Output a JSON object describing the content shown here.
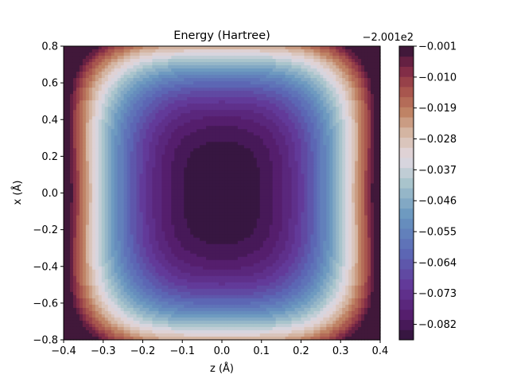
{
  "chart_data": {
    "type": "heatmap",
    "title": "Energy (Hartree)",
    "xlabel": "z (Å)",
    "ylabel": "x (Å)",
    "xlim": [
      -0.4,
      0.4
    ],
    "ylim": [
      -0.8,
      0.8
    ],
    "x_ticks": [
      -0.4,
      -0.3,
      -0.2,
      -0.1,
      0.0,
      0.1,
      0.2,
      0.3,
      0.4
    ],
    "x_tick_labels": [
      "−0.4",
      "−0.3",
      "−0.2",
      "−0.1",
      "0.0",
      "0.1",
      "0.2",
      "0.3",
      "0.4"
    ],
    "y_ticks": [
      -0.8,
      -0.6,
      -0.4,
      -0.2,
      0.0,
      0.2,
      0.4,
      0.6,
      0.8
    ],
    "y_tick_labels": [
      "−0.8",
      "−0.6",
      "−0.4",
      "−0.2",
      "0.0",
      "0.2",
      "0.4",
      "0.6",
      "0.8"
    ],
    "colorbar": {
      "offset_label": "−2.001e2",
      "vmin": -0.0865,
      "vmax": -0.001,
      "ticks": [
        -0.082,
        -0.073,
        -0.064,
        -0.055,
        -0.046,
        -0.037,
        -0.028,
        -0.019,
        -0.01,
        -0.001
      ],
      "tick_labels": [
        "−0.082",
        "−0.073",
        "−0.064",
        "−0.055",
        "−0.046",
        "−0.037",
        "−0.028",
        "−0.019",
        "−0.010",
        "−0.001"
      ],
      "levels": 29
    },
    "colormap": "twilight_shifted",
    "min_location": {
      "z": 0.0,
      "x": 0.0,
      "value": -0.0865
    },
    "max_locations": [
      {
        "z": -0.4,
        "x": 0.0
      },
      {
        "z": 0.4,
        "x": 0.0
      },
      {
        "z": 0.0,
        "x": 0.8
      },
      {
        "z": 0.0,
        "x": -0.8
      }
    ]
  }
}
